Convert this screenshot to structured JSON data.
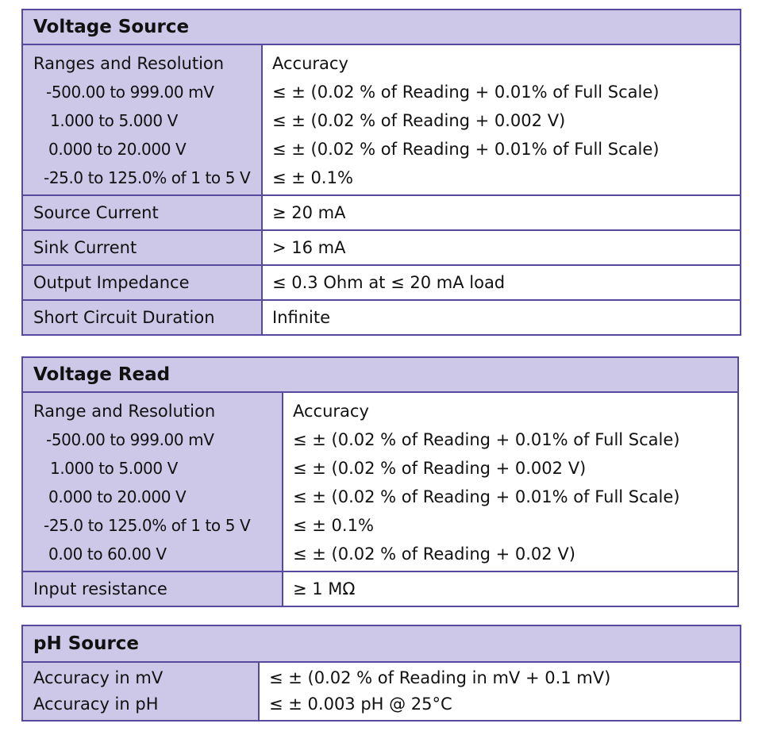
{
  "voltage_source": {
    "title": "Voltage Source",
    "ranges_header": "Ranges and Resolution",
    "accuracy_header": "Accuracy",
    "ranges": [
      {
        "range": "-500.00 to 999.00 mV",
        "accuracy": "≤ ± (0.02 % of Reading + 0.01% of Full Scale)"
      },
      {
        "range": "1.000 to 5.000 V",
        "accuracy": "≤ ± (0.02 % of Reading + 0.002 V)"
      },
      {
        "range": "0.000 to 20.000 V",
        "accuracy": "≤ ± (0.02 % of Reading + 0.01% of Full Scale)"
      },
      {
        "range": "-25.0 to 125.0% of 1 to 5 V",
        "accuracy": "≤ ± 0.1%"
      }
    ],
    "rows": [
      {
        "label": "Source Current",
        "value": "≥ 20 mA"
      },
      {
        "label": "Sink Current",
        "value": "> 16 mA"
      },
      {
        "label": "Output Impedance",
        "value": "≤ 0.3 Ohm at ≤ 20 mA load"
      },
      {
        "label": "Short Circuit Duration",
        "value": "Infinite"
      }
    ]
  },
  "voltage_read": {
    "title": "Voltage Read",
    "ranges_header": "Range and Resolution",
    "accuracy_header": "Accuracy",
    "ranges": [
      {
        "range": "-500.00 to 999.00 mV",
        "accuracy": "≤ ± (0.02 % of Reading + 0.01% of Full Scale)"
      },
      {
        "range": "1.000 to 5.000 V",
        "accuracy": "≤ ± (0.02 % of Reading + 0.002 V)"
      },
      {
        "range": "0.000 to 20.000 V",
        "accuracy": "≤ ± (0.02 % of Reading + 0.01% of Full Scale)"
      },
      {
        "range": "-25.0 to 125.0% of 1 to 5 V",
        "accuracy": "≤ ± 0.1%"
      },
      {
        "range": "0.00 to 60.00 V",
        "accuracy": "≤ ± (0.02 % of Reading + 0.02 V)"
      }
    ],
    "rows": [
      {
        "label": "Input resistance",
        "value": "≥ 1 MΩ"
      }
    ]
  },
  "ph_source": {
    "title": "pH Source",
    "labels": [
      "Accuracy in mV",
      "Accuracy in pH"
    ],
    "values": [
      "≤ ± (0.02 % of Reading in mV + 0.1 mV)",
      "≤ ± 0.003 pH @ 25°C"
    ]
  }
}
